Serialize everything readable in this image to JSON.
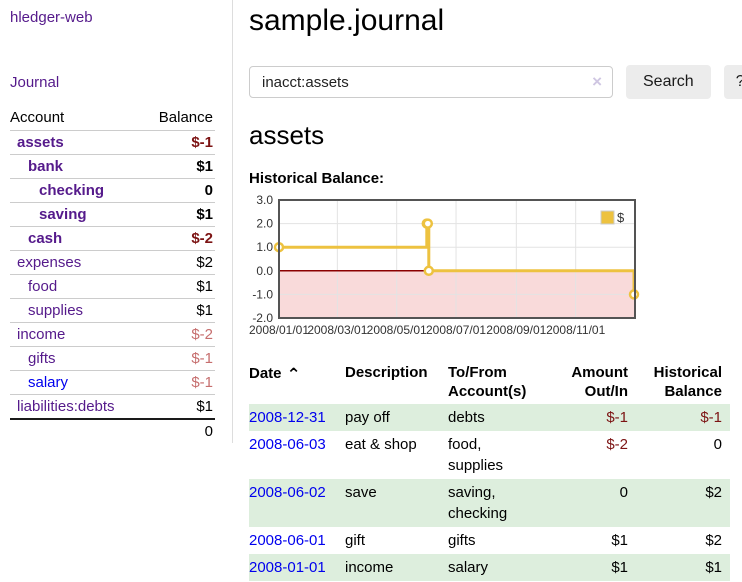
{
  "colors": {
    "text": "#000000",
    "link-purple": "#551a8b",
    "link-blue": "#0000ee",
    "neg-strong": "#7c1313",
    "neg-soft": "#c66e6e",
    "stripe": "#ddeedd",
    "divider": "#dddddd",
    "row-border": "#cccccc",
    "btn-bg": "#ececec",
    "input-border": "#cccccc",
    "clear-icon": "#cfc6e2"
  },
  "sidebar": {
    "brand": "hledger-web",
    "journal_link": "Journal",
    "table": {
      "account_col": "Account",
      "balance_col": "Balance"
    },
    "accounts": [
      {
        "name": "assets",
        "balance": "$-1"
      },
      {
        "name": "bank",
        "balance": "$1"
      },
      {
        "name": "checking",
        "balance": "0"
      },
      {
        "name": "saving",
        "balance": "$1"
      },
      {
        "name": "cash",
        "balance": "$-2"
      },
      {
        "name": "expenses",
        "balance": "$2"
      },
      {
        "name": "food",
        "balance": "$1"
      },
      {
        "name": "supplies",
        "balance": "$1"
      },
      {
        "name": "income",
        "balance": "$-2"
      },
      {
        "name": "gifts",
        "balance": "$-1"
      },
      {
        "name": "salary",
        "balance": "$-1"
      },
      {
        "name": "liabilities:debts",
        "balance": "$1"
      }
    ],
    "total": "0"
  },
  "header": {
    "title": "sample.journal"
  },
  "search": {
    "value": "inacct:assets",
    "clear_icon": "×",
    "search_label": "Search",
    "help_label": "?"
  },
  "content": {
    "account_heading": "assets",
    "chart_heading": "Historical Balance:"
  },
  "chart_data": {
    "type": "line",
    "step": true,
    "title": "Historical Balance",
    "series": [
      {
        "name": "$",
        "color": "#edc240",
        "points": [
          [
            "2008-01-01",
            1
          ],
          [
            "2008-06-01",
            2
          ],
          [
            "2008-06-02",
            2
          ],
          [
            "2008-06-03",
            0
          ],
          [
            "2008-12-31",
            -1
          ]
        ]
      }
    ],
    "xlim": [
      "2008-01-01",
      "2009-01-01"
    ],
    "ylim": [
      -2,
      3
    ],
    "xticks": [
      {
        "v": "2008-01-01",
        "label": "2008/01/01"
      },
      {
        "v": "2008-03-01",
        "label": "2008/03/01"
      },
      {
        "v": "2008-05-01",
        "label": "2008/05/01"
      },
      {
        "v": "2008-07-01",
        "label": "2008/07/01"
      },
      {
        "v": "2008-09-01",
        "label": "2008/09/01"
      },
      {
        "v": "2008-11-01",
        "label": "2008/11/01"
      }
    ],
    "yticks": [
      {
        "v": 3,
        "label": "3.0"
      },
      {
        "v": 2,
        "label": "2.0"
      },
      {
        "v": 1,
        "label": "1.0"
      },
      {
        "v": 0,
        "label": "0.0"
      },
      {
        "v": -1,
        "label": "-1.0"
      },
      {
        "v": -2,
        "label": "-2.0"
      }
    ],
    "grid": true,
    "legend_position": "top-right",
    "negative_region_fill": "#f9dada",
    "zero_line_color": "#8b0000",
    "grid_color": "#e3e3e3",
    "border_color": "#545454"
  },
  "register": {
    "columns": {
      "date": "Date",
      "description": "Description",
      "accounts": "To/From Account(s)",
      "amount": "Amount Out/In",
      "balance": "Historical Balance"
    },
    "sort_icon": "⌃",
    "rows": [
      {
        "date": "2008-12-31",
        "description": "pay off",
        "accounts": "debts",
        "amount": "$-1",
        "balance": "$-1"
      },
      {
        "date": "2008-06-03",
        "description": "eat & shop",
        "accounts": "food, supplies",
        "amount": "$-2",
        "balance": "0"
      },
      {
        "date": "2008-06-02",
        "description": "save",
        "accounts": "saving, checking",
        "amount": "0",
        "balance": "$2"
      },
      {
        "date": "2008-06-01",
        "description": "gift",
        "accounts": "gifts",
        "amount": "$1",
        "balance": "$2"
      },
      {
        "date": "2008-01-01",
        "description": "income",
        "accounts": "salary",
        "amount": "$1",
        "balance": "$1"
      }
    ]
  }
}
